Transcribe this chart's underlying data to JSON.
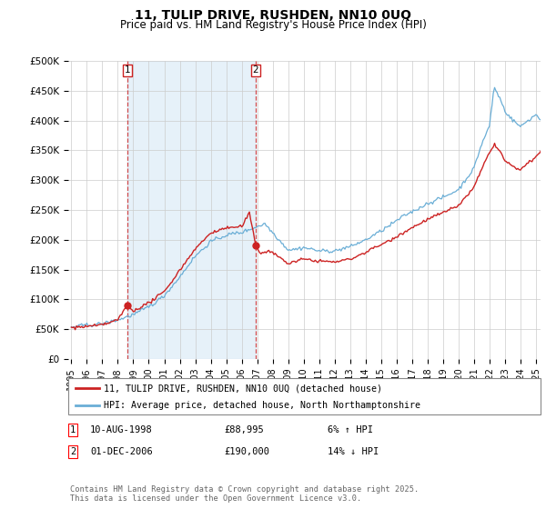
{
  "title": "11, TULIP DRIVE, RUSHDEN, NN10 0UQ",
  "subtitle": "Price paid vs. HM Land Registry's House Price Index (HPI)",
  "ylim": [
    0,
    500000
  ],
  "yticks": [
    0,
    50000,
    100000,
    150000,
    200000,
    250000,
    300000,
    350000,
    400000,
    450000,
    500000
  ],
  "ytick_labels": [
    "£0",
    "£50K",
    "£100K",
    "£150K",
    "£200K",
    "£250K",
    "£300K",
    "£350K",
    "£400K",
    "£450K",
    "£500K"
  ],
  "hpi_color": "#6aaed6",
  "hpi_fill_color": "#d6e8f5",
  "price_color": "#cc2222",
  "sale1_year": 1998.6,
  "sale1_price": 88995,
  "sale2_year": 2006.9,
  "sale2_price": 190000,
  "legend_red_label": "11, TULIP DRIVE, RUSHDEN, NN10 0UQ (detached house)",
  "legend_blue_label": "HPI: Average price, detached house, North Northamptonshire",
  "annotation1_date": "10-AUG-1998",
  "annotation1_price": "£88,995",
  "annotation1_hpi": "6% ↑ HPI",
  "annotation2_date": "01-DEC-2006",
  "annotation2_price": "£190,000",
  "annotation2_hpi": "14% ↓ HPI",
  "footer": "Contains HM Land Registry data © Crown copyright and database right 2025.\nThis data is licensed under the Open Government Licence v3.0.",
  "background_color": "#ffffff",
  "grid_color": "#cccccc",
  "x_start_year": 1995,
  "x_end_year": 2025
}
